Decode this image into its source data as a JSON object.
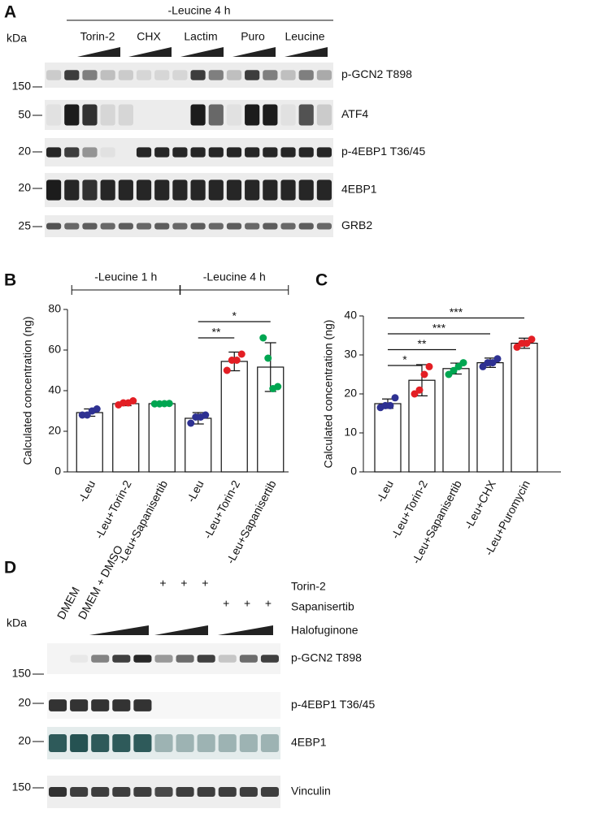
{
  "panel_a": {
    "label": "A",
    "condition": "-Leucine 4 h",
    "unit": "kDa",
    "groups": [
      "Torin-2",
      "CHX",
      "Lactim",
      "Puro",
      "Leucine"
    ],
    "blots": [
      {
        "name": "p-GCN2 T898",
        "marker": 150
      },
      {
        "name": "ATF4",
        "marker": 50
      },
      {
        "name": "p-4EBP1 T36/45",
        "marker": 20
      },
      {
        "name": "4EBP1",
        "marker": 20
      },
      {
        "name": "GRB2",
        "marker": 25
      }
    ]
  },
  "chart_data": [
    {
      "type": "bar",
      "panel": "B",
      "ylabel": "Calculated concentration (ng)",
      "categories": [
        "-Leu",
        "-Leu+Torin-2",
        "-Leu+Sapanisertib",
        "-Leu",
        "-Leu+Torin-2",
        "-Leu+Sapanisertib"
      ],
      "values": [
        29.2,
        33.6,
        33.6,
        26.4,
        54.4,
        51.6
      ],
      "errors": [
        1.8,
        1.0,
        0.3,
        2.8,
        4.6,
        12
      ],
      "points": [
        [
          28,
          28,
          30,
          31
        ],
        [
          33,
          34,
          34,
          35
        ],
        [
          33.5,
          33.5,
          33.6,
          33.7
        ],
        [
          24,
          27,
          27,
          28
        ],
        [
          50,
          55,
          55,
          58
        ],
        [
          66,
          56,
          41,
          42
        ]
      ],
      "point_colors": [
        "#2e3192",
        "#e31e24",
        "#00a651",
        "#2e3192",
        "#e31e24",
        "#00a651"
      ],
      "ylim": [
        0,
        80
      ],
      "yticks": [
        0,
        20,
        40,
        60,
        80
      ],
      "groups": [
        {
          "label": "-Leucine 1 h",
          "from": 0,
          "to": 2
        },
        {
          "label": "-Leucine 4 h",
          "from": 3,
          "to": 5
        }
      ],
      "significance": [
        {
          "label": "**",
          "from": 3,
          "to": 4
        },
        {
          "label": "*",
          "from": 3,
          "to": 5
        }
      ]
    },
    {
      "type": "bar",
      "panel": "C",
      "ylabel": "Calculated concentration (ng)",
      "categories": [
        "-Leu",
        "-Leu+Torin-2",
        "-Leu+Sapanisertib",
        "-Leu+CHX",
        "-Leu+Puromycin"
      ],
      "values": [
        17.5,
        23.5,
        26.5,
        28,
        33
      ],
      "errors": [
        1.2,
        4,
        1.4,
        1.2,
        1.3
      ],
      "points": [
        [
          16.5,
          17,
          17,
          19
        ],
        [
          20,
          21,
          25,
          27
        ],
        [
          25,
          26,
          27,
          28
        ],
        [
          27,
          28,
          28,
          29
        ],
        [
          32,
          33,
          33,
          34
        ]
      ],
      "point_colors": [
        "#2e3192",
        "#e31e24",
        "#00a651",
        "#2e3192",
        "#e31e24"
      ],
      "ylim": [
        0,
        40
      ],
      "yticks": [
        0,
        10,
        20,
        30,
        40
      ],
      "significance": [
        {
          "label": "*",
          "from": 0,
          "to": 1
        },
        {
          "label": "**",
          "from": 0,
          "to": 2
        },
        {
          "label": "***",
          "from": 0,
          "to": 3
        },
        {
          "label": "***",
          "from": 0,
          "to": 4
        }
      ]
    }
  ],
  "panel_d": {
    "label": "D",
    "unit": "kDa",
    "lanes": [
      "DMEM",
      "DMEM + DMSO",
      null,
      null,
      null,
      null,
      null,
      null,
      null,
      null,
      null
    ],
    "treatments": [
      {
        "name": "Torin-2",
        "signs": [
          null,
          null,
          null,
          null,
          null,
          "+",
          "+",
          "+",
          null,
          null,
          null
        ]
      },
      {
        "name": "Sapanisertib",
        "signs": [
          null,
          null,
          null,
          null,
          null,
          null,
          null,
          null,
          "+",
          "+",
          "+"
        ]
      },
      {
        "name": "Halofuginone",
        "signs": [
          null,
          null,
          null,
          null,
          null,
          null,
          null,
          null,
          null,
          null,
          null
        ]
      }
    ],
    "blots": [
      {
        "name": "p-GCN2 T898",
        "marker": 150
      },
      {
        "name": "p-4EBP1 T36/45",
        "marker": 20
      },
      {
        "name": "4EBP1",
        "marker": 20
      },
      {
        "name": "Vinculin",
        "marker": 150
      }
    ]
  }
}
